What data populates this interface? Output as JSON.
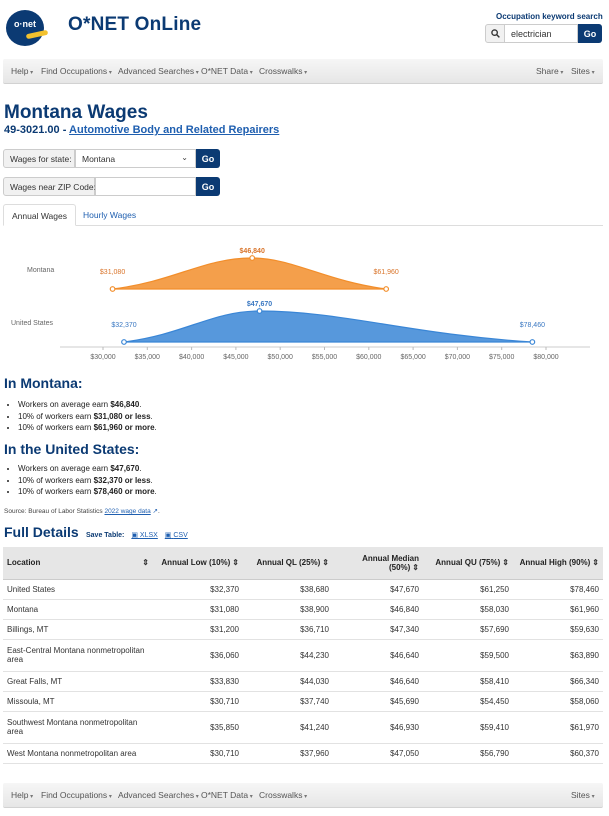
{
  "header": {
    "brand": "O*NET OnLine",
    "logo_text": "o·net",
    "search_label": "Occupation keyword search",
    "search_value": "electrician",
    "search_go": "Go",
    "search_icon": "search-icon"
  },
  "nav_top": {
    "left": [
      "Help",
      "Find Occupations",
      "Advanced Searches",
      "O*NET Data",
      "Crosswalks"
    ],
    "right": [
      "Share",
      "Sites"
    ]
  },
  "nav_bottom": {
    "left": [
      "Help",
      "Find Occupations",
      "Advanced Searches",
      "O*NET Data",
      "Crosswalks"
    ],
    "right": [
      "Sites"
    ]
  },
  "page": {
    "title": "Montana Wages",
    "code": "49-3021.00 - ",
    "occupation": "Automotive Body and Related Repairers"
  },
  "filters": {
    "state_label": "Wages for state:",
    "state_value": "Montana",
    "zip_label": "Wages near ZIP Code:",
    "zip_value": "",
    "go": "Go"
  },
  "tabs": {
    "annual": "Annual Wages",
    "hourly": "Hourly Wages"
  },
  "chart_data": {
    "type": "area",
    "xlim": [
      28000,
      82000
    ],
    "x_ticks": [
      "$30,000",
      "$35,000",
      "$40,000",
      "$45,000",
      "$50,000",
      "$55,000",
      "$60,000",
      "$65,000",
      "$70,000",
      "$75,000",
      "$80,000"
    ],
    "x_tick_values": [
      30000,
      35000,
      40000,
      45000,
      50000,
      55000,
      60000,
      65000,
      70000,
      75000,
      80000
    ],
    "series": [
      {
        "name": "Montana",
        "color": "#f28e2b",
        "low": 31080,
        "median": 46840,
        "high": 61960,
        "labels": {
          "low": "$31,080",
          "median": "$46,840",
          "high": "$61,960"
        },
        "q1": 38900,
        "q3": 58030
      },
      {
        "name": "United States",
        "color": "#3a86d6",
        "low": 32370,
        "median": 47670,
        "high": 78460,
        "labels": {
          "low": "$32,370",
          "median": "$47,670",
          "high": "$78,460"
        },
        "q1": 38680,
        "q3": 61250
      }
    ]
  },
  "montana": {
    "heading": "In Montana:",
    "avg": [
      "Workers on average earn ",
      "$46,840",
      "."
    ],
    "low": [
      "10% of workers earn ",
      "$31,080 or less",
      "."
    ],
    "high": [
      "10% of workers earn ",
      "$61,960 or more",
      "."
    ]
  },
  "us": {
    "heading": "In the United States:",
    "avg": [
      "Workers on average earn ",
      "$47,670",
      "."
    ],
    "low": [
      "10% of workers earn ",
      "$32,370 or less",
      "."
    ],
    "high": [
      "10% of workers earn ",
      "$78,460 or more",
      "."
    ]
  },
  "source": {
    "prefix": "Source: Bureau of Labor Statistics ",
    "link": "2022 wage data"
  },
  "details": {
    "heading": "Full Details",
    "save_label": "Save Table:",
    "xlsx": "XLSX",
    "csv": "CSV"
  },
  "table": {
    "headers": [
      "Location",
      "Annual Low (10%)",
      "Annual QL (25%)",
      "Annual Median (50%)",
      "Annual QU (75%)",
      "Annual High (90%)"
    ],
    "rows": [
      [
        "United States",
        "$32,370",
        "$38,680",
        "$47,670",
        "$61,250",
        "$78,460"
      ],
      [
        "Montana",
        "$31,080",
        "$38,900",
        "$46,840",
        "$58,030",
        "$61,960"
      ],
      [
        "Billings, MT",
        "$31,200",
        "$36,710",
        "$47,340",
        "$57,690",
        "$59,630"
      ],
      [
        "East-Central Montana nonmetropolitan area",
        "$36,060",
        "$44,230",
        "$46,640",
        "$59,500",
        "$63,890"
      ],
      [
        "Great Falls, MT",
        "$33,830",
        "$44,030",
        "$46,640",
        "$58,410",
        "$66,340"
      ],
      [
        "Missoula, MT",
        "$30,710",
        "$37,740",
        "$45,690",
        "$54,450",
        "$58,060"
      ],
      [
        "Southwest Montana nonmetropolitan area",
        "$35,850",
        "$41,240",
        "$46,930",
        "$59,410",
        "$61,970"
      ],
      [
        "West Montana nonmetropolitan area",
        "$30,710",
        "$37,960",
        "$47,050",
        "$56,790",
        "$60,370"
      ]
    ]
  }
}
